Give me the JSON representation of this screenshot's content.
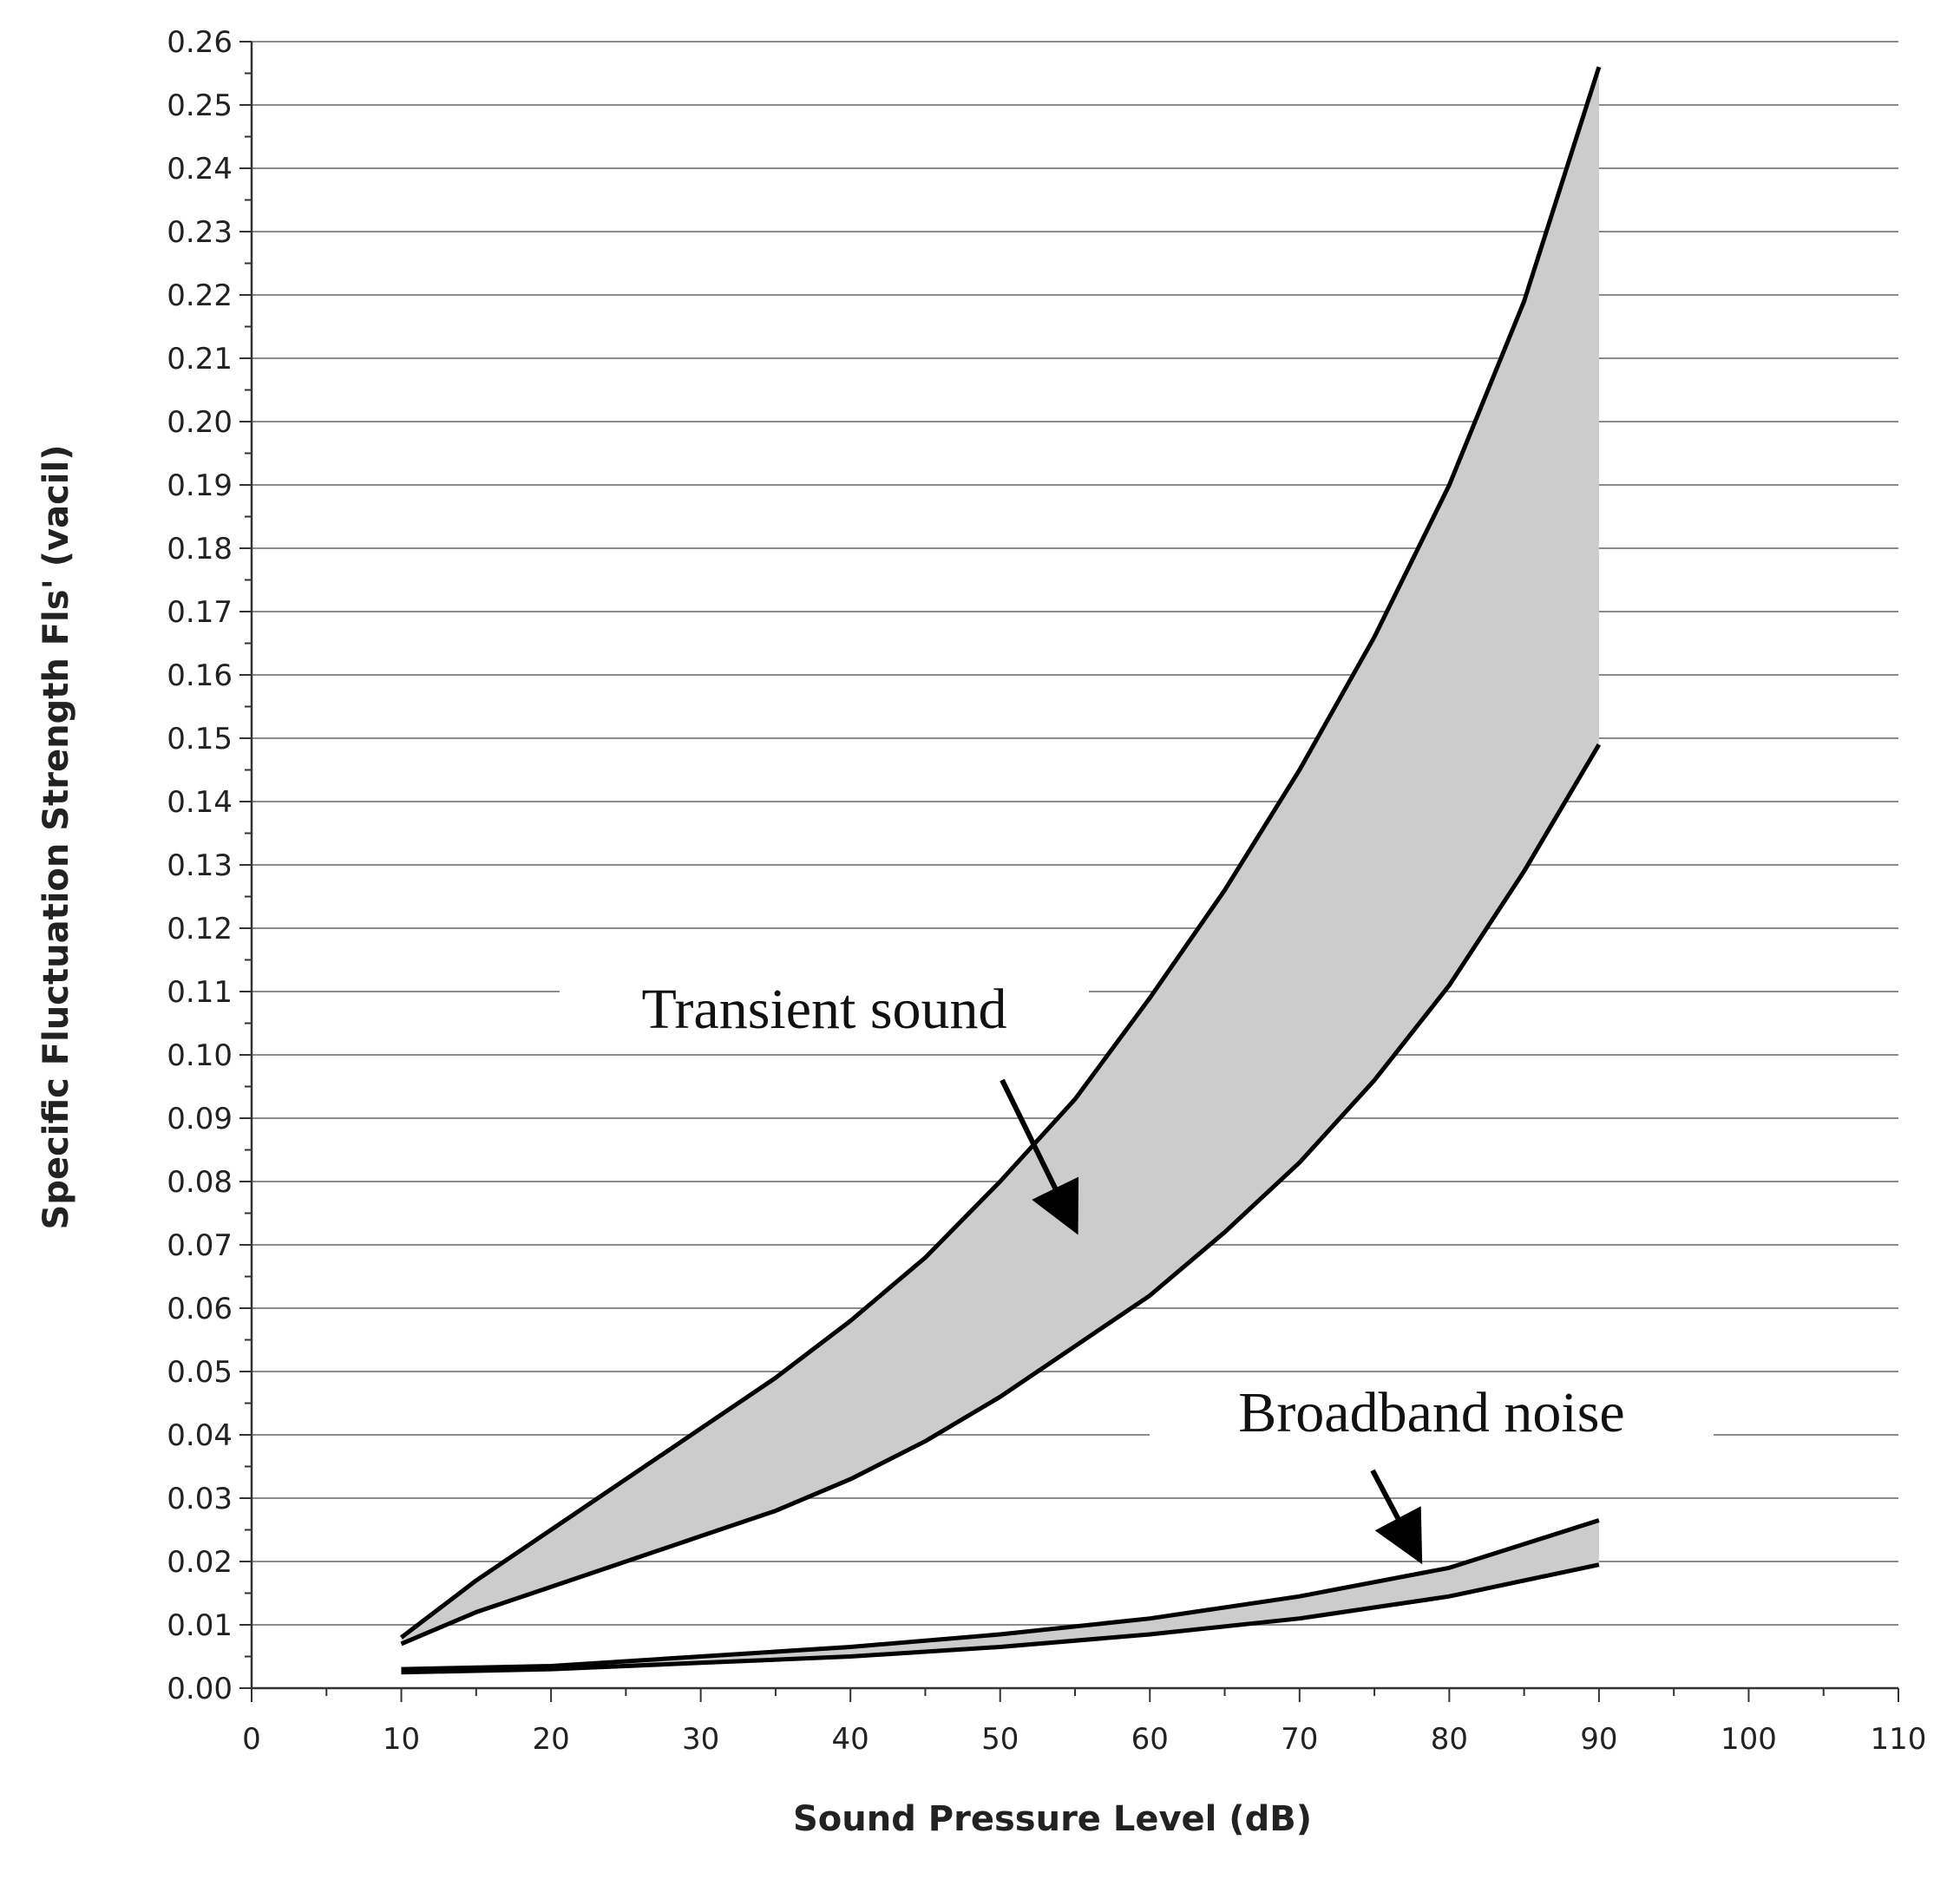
{
  "chart_data": {
    "type": "area",
    "xlabel": "Sound Pressure Level  (dB)",
    "ylabel": "Specific Fluctuation Strength  Fls' (vacil)",
    "xlim": [
      0,
      110
    ],
    "ylim": [
      0,
      0.26
    ],
    "x_ticks": [
      "0",
      "10",
      "20",
      "30",
      "40",
      "50",
      "60",
      "70",
      "80",
      "90",
      "100",
      "110"
    ],
    "y_ticks": [
      "0.00",
      "0.01",
      "0.02",
      "0.03",
      "0.04",
      "0.05",
      "0.06",
      "0.07",
      "0.08",
      "0.09",
      "0.10",
      "0.11",
      "0.12",
      "0.13",
      "0.14",
      "0.15",
      "0.16",
      "0.17",
      "0.18",
      "0.19",
      "0.20",
      "0.21",
      "0.22",
      "0.23",
      "0.24",
      "0.25",
      "0.26"
    ],
    "grid": "horizontal",
    "fill_color": "#cccccc",
    "line_color": "#000000",
    "bands": [
      {
        "label": "Transient sound",
        "x": [
          10,
          15,
          20,
          25,
          30,
          35,
          40,
          45,
          50,
          55,
          60,
          65,
          70,
          75,
          80,
          85,
          90
        ],
        "upper": [
          0.008,
          0.017,
          0.025,
          0.033,
          0.041,
          0.049,
          0.058,
          0.068,
          0.08,
          0.093,
          0.109,
          0.126,
          0.145,
          0.166,
          0.19,
          0.219,
          0.256
        ],
        "lower": [
          0.007,
          0.012,
          0.016,
          0.02,
          0.024,
          0.028,
          0.033,
          0.039,
          0.046,
          0.054,
          0.062,
          0.072,
          0.083,
          0.096,
          0.111,
          0.129,
          0.149
        ]
      },
      {
        "label": "Broadband noise",
        "x": [
          10,
          20,
          30,
          40,
          50,
          60,
          70,
          80,
          90
        ],
        "upper": [
          0.003,
          0.0035,
          0.005,
          0.0065,
          0.0085,
          0.011,
          0.0145,
          0.019,
          0.0265
        ],
        "lower": [
          0.0025,
          0.003,
          0.004,
          0.005,
          0.0065,
          0.0085,
          0.011,
          0.0145,
          0.0195
        ]
      }
    ],
    "annotations": [
      {
        "text": "Transient sound",
        "arrow_to_x": 55,
        "arrow_to_y": 0.072
      },
      {
        "text": "Broadband noise",
        "arrow_to_x": 78,
        "arrow_to_y": 0.019
      }
    ]
  }
}
